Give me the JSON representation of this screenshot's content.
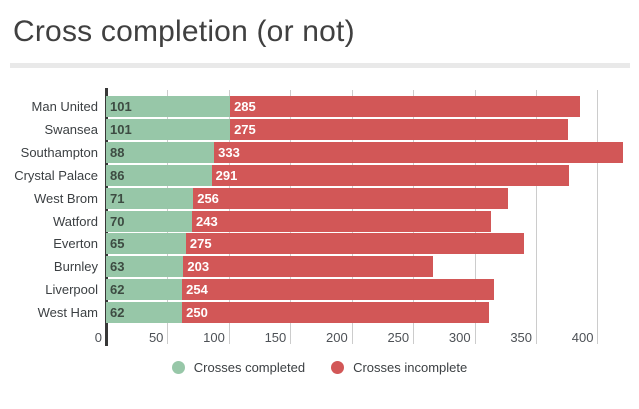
{
  "chart_data": {
    "type": "bar",
    "orientation": "horizontal",
    "stacked": true,
    "title": "Cross completion (or not)",
    "xlabel": "",
    "ylabel": "",
    "categories": [
      "Man United",
      "Swansea",
      "Southampton",
      "Crystal Palace",
      "West Brom",
      "Watford",
      "Everton",
      "Burnley",
      "Liverpool",
      "West Ham"
    ],
    "series": [
      {
        "name": "Crosses completed",
        "color": "#97c7a8",
        "values": [
          101,
          101,
          88,
          86,
          71,
          70,
          65,
          63,
          62,
          62
        ]
      },
      {
        "name": "Crosses incomplete",
        "color": "#d25757",
        "values": [
          285,
          275,
          333,
          291,
          256,
          243,
          275,
          203,
          254,
          250
        ]
      }
    ],
    "x_ticks": [
      0,
      50,
      100,
      150,
      200,
      250,
      300,
      350,
      400
    ],
    "xlim": [
      0,
      433
    ],
    "grid": true,
    "legend_position": "bottom"
  },
  "colors": {
    "title_text": "#404040",
    "axis_line": "#383838",
    "gridline": "#cccccc",
    "divider": "#e9e9e9",
    "completed_value_text": "#3d4b42",
    "incomplete_value_text": "#ffffff"
  }
}
